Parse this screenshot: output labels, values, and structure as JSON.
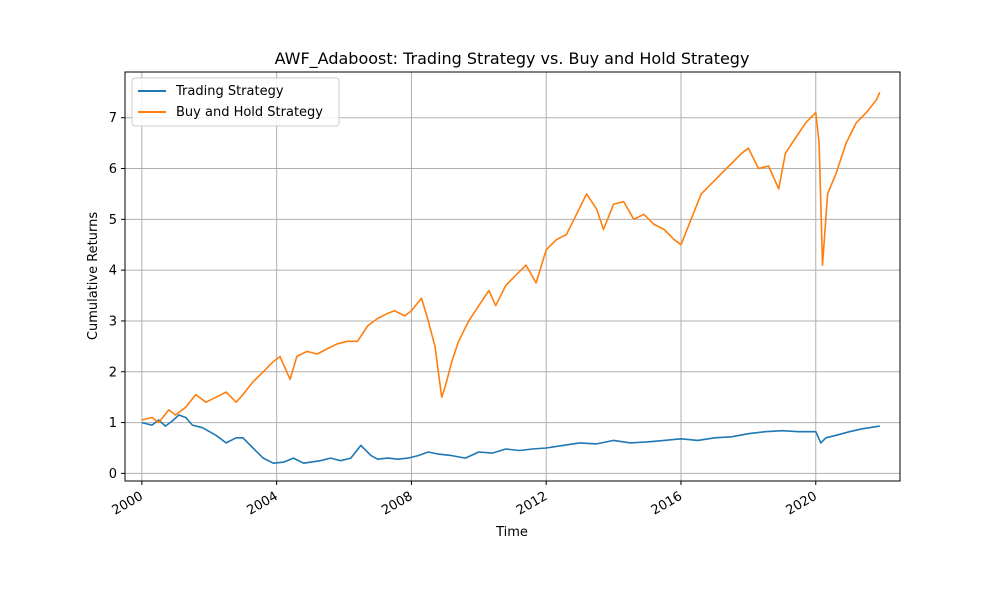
{
  "chart_data": {
    "type": "line",
    "title": "AWF_Adaboost: Trading Strategy vs. Buy and Hold Strategy",
    "xlabel": "Time",
    "ylabel": "Cumulative Returns",
    "xlim": [
      1999.5,
      2022.5
    ],
    "ylim": [
      -0.15,
      7.9
    ],
    "x_ticks": [
      2000,
      2004,
      2008,
      2012,
      2016,
      2020
    ],
    "x_tick_labels": [
      "2000",
      "2004",
      "2008",
      "2012",
      "2016",
      "2020"
    ],
    "y_ticks": [
      0,
      1,
      2,
      3,
      4,
      5,
      6,
      7
    ],
    "y_tick_labels": [
      "0",
      "1",
      "2",
      "3",
      "4",
      "5",
      "6",
      "7"
    ],
    "grid": true,
    "legend": "upper-left",
    "series": [
      {
        "name": "Trading Strategy",
        "color": "#1f77b4",
        "x": [
          2000.0,
          2000.3,
          2000.5,
          2000.7,
          2000.9,
          2001.1,
          2001.3,
          2001.5,
          2001.8,
          2002.2,
          2002.5,
          2002.8,
          2003.0,
          2003.3,
          2003.6,
          2003.9,
          2004.2,
          2004.5,
          2004.8,
          2005.0,
          2005.3,
          2005.6,
          2005.9,
          2006.2,
          2006.5,
          2006.8,
          2007.0,
          2007.3,
          2007.6,
          2007.9,
          2008.2,
          2008.5,
          2008.8,
          2009.2,
          2009.6,
          2010.0,
          2010.4,
          2010.8,
          2011.2,
          2011.6,
          2012.0,
          2012.5,
          2013.0,
          2013.5,
          2014.0,
          2014.5,
          2015.0,
          2015.5,
          2016.0,
          2016.5,
          2017.0,
          2017.5,
          2018.0,
          2018.5,
          2019.0,
          2019.5,
          2020.0,
          2020.15,
          2020.3,
          2020.6,
          2021.0,
          2021.4,
          2021.9
        ],
        "y": [
          1.0,
          0.95,
          1.05,
          0.93,
          1.03,
          1.15,
          1.1,
          0.95,
          0.9,
          0.75,
          0.6,
          0.7,
          0.7,
          0.5,
          0.3,
          0.2,
          0.22,
          0.3,
          0.2,
          0.22,
          0.25,
          0.3,
          0.25,
          0.3,
          0.55,
          0.35,
          0.28,
          0.3,
          0.28,
          0.3,
          0.35,
          0.42,
          0.38,
          0.35,
          0.3,
          0.42,
          0.4,
          0.48,
          0.45,
          0.48,
          0.5,
          0.55,
          0.6,
          0.58,
          0.65,
          0.6,
          0.62,
          0.65,
          0.68,
          0.65,
          0.7,
          0.72,
          0.78,
          0.82,
          0.84,
          0.82,
          0.82,
          0.6,
          0.7,
          0.75,
          0.82,
          0.88,
          0.93
        ]
      },
      {
        "name": "Buy and Hold Strategy",
        "color": "#ff7f0e",
        "x": [
          2000.0,
          2000.3,
          2000.5,
          2000.8,
          2001.0,
          2001.3,
          2001.6,
          2001.9,
          2002.2,
          2002.5,
          2002.8,
          2003.0,
          2003.3,
          2003.6,
          2003.9,
          2004.1,
          2004.4,
          2004.6,
          2004.9,
          2005.2,
          2005.5,
          2005.8,
          2006.1,
          2006.4,
          2006.7,
          2007.0,
          2007.3,
          2007.5,
          2007.8,
          2008.0,
          2008.3,
          2008.5,
          2008.7,
          2008.9,
          2009.0,
          2009.2,
          2009.4,
          2009.7,
          2010.0,
          2010.3,
          2010.5,
          2010.8,
          2011.1,
          2011.4,
          2011.7,
          2012.0,
          2012.3,
          2012.6,
          2012.9,
          2013.2,
          2013.5,
          2013.7,
          2014.0,
          2014.3,
          2014.6,
          2014.9,
          2015.2,
          2015.5,
          2015.8,
          2016.0,
          2016.3,
          2016.6,
          2016.9,
          2017.2,
          2017.5,
          2017.8,
          2018.0,
          2018.3,
          2018.6,
          2018.9,
          2019.1,
          2019.4,
          2019.7,
          2020.0,
          2020.1,
          2020.2,
          2020.35,
          2020.6,
          2020.9,
          2021.2,
          2021.5,
          2021.8,
          2021.9
        ],
        "y": [
          1.05,
          1.1,
          1.0,
          1.25,
          1.15,
          1.3,
          1.55,
          1.4,
          1.5,
          1.6,
          1.4,
          1.55,
          1.8,
          2.0,
          2.2,
          2.3,
          1.85,
          2.3,
          2.4,
          2.35,
          2.45,
          2.55,
          2.6,
          2.6,
          2.9,
          3.05,
          3.15,
          3.2,
          3.1,
          3.2,
          3.45,
          3.0,
          2.5,
          1.5,
          1.7,
          2.2,
          2.6,
          3.0,
          3.3,
          3.6,
          3.3,
          3.7,
          3.9,
          4.1,
          3.75,
          4.4,
          4.6,
          4.7,
          5.1,
          5.5,
          5.2,
          4.8,
          5.3,
          5.35,
          5.0,
          5.1,
          4.9,
          4.8,
          4.6,
          4.5,
          5.0,
          5.5,
          5.7,
          5.9,
          6.1,
          6.3,
          6.4,
          6.0,
          6.05,
          5.6,
          6.3,
          6.6,
          6.9,
          7.1,
          6.5,
          4.1,
          5.5,
          5.9,
          6.5,
          6.9,
          7.1,
          7.35,
          7.5
        ]
      }
    ]
  }
}
